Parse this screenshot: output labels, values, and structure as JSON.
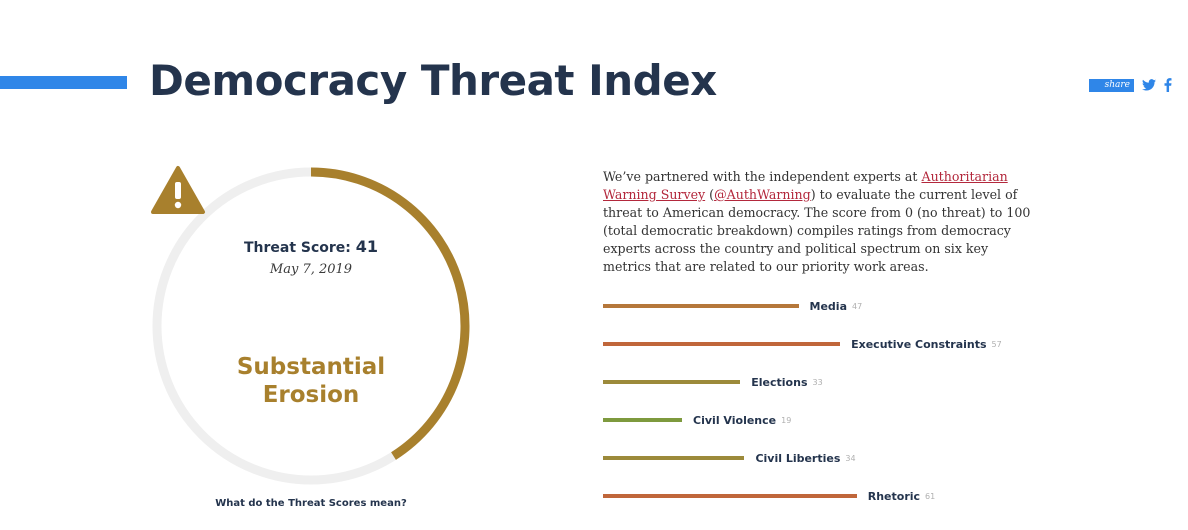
{
  "header": {
    "title": "Democracy Threat Index",
    "accent_color": "#2f86e8",
    "share": {
      "label": "share",
      "twitter_icon": "twitter-icon",
      "facebook_icon": "facebook-icon"
    }
  },
  "gauge": {
    "score_label": "Threat Score:",
    "score": 41,
    "max_score": 100,
    "date": "May 7, 2019",
    "icon": "warning-triangle-icon",
    "level_line1": "Substantial",
    "level_line2": "Erosion",
    "level_color": "#a8802d",
    "track_color": "#efefef"
  },
  "intro": {
    "text_before": "We’ve partnered with the independent experts at ",
    "link1": "Authoritarian Warning Survey",
    "text_mid1": " (",
    "link2": "@AuthWarning",
    "text_after": ") to evaluate the current level of threat to American democracy. The score from 0 (no threat) to 100 (total democratic breakdown) compiles ratings from democracy experts across the country and political spectrum on six key metrics that are related to our priority work areas."
  },
  "metrics": [
    {
      "name": "Media",
      "value": "47",
      "color": "#b5773a"
    },
    {
      "name": "Executive Constraints",
      "value": "57",
      "color": "#c0663a"
    },
    {
      "name": "Elections",
      "value": "33",
      "color": "#9c8a3a"
    },
    {
      "name": "Civil Violence",
      "value": "19",
      "color": "#7e9a3e"
    },
    {
      "name": "Civil Liberties",
      "value": "34",
      "color": "#9c8a3a"
    },
    {
      "name": "Rhetoric",
      "value": "61",
      "color": "#c0663a"
    }
  ],
  "footer": {
    "faq_link": "What do the Threat Scores mean?"
  }
}
